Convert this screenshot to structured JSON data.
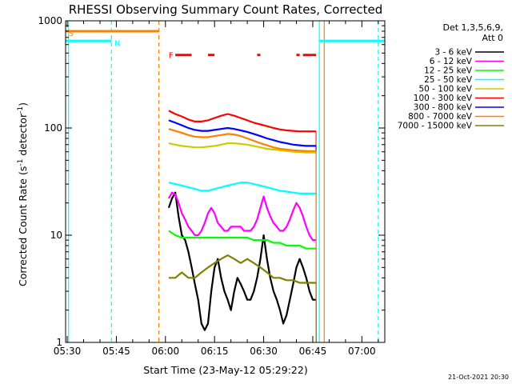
{
  "chart_data": {
    "type": "line",
    "title": "RHESSI Observing Summary Count Rates, Corrected",
    "xlabel": "Start Time (23-May-12 05:29:22)",
    "ylabel_main": "Corrected Count Rate (s",
    "ylabel_sup1": "-1",
    "ylabel_mid": " detector",
    "ylabel_sup2": "-1",
    "ylabel_end": ")",
    "y_scale": "log",
    "ylim": [
      1,
      1000
    ],
    "xlim_minutes": [
      -0.5,
      97
    ],
    "x_tick_labels": [
      {
        "min": 0,
        "label": "05:30"
      },
      {
        "min": 15,
        "label": "05:45"
      },
      {
        "min": 30,
        "label": "06:00"
      },
      {
        "min": 45,
        "label": "06:15"
      },
      {
        "min": 60,
        "label": "06:30"
      },
      {
        "min": 75,
        "label": "06:45"
      },
      {
        "min": 90,
        "label": "07:00"
      }
    ],
    "y_tick_labels": [
      {
        "value": 1,
        "label": "1"
      },
      {
        "value": 10,
        "label": "10"
      },
      {
        "value": 100,
        "label": "100"
      },
      {
        "value": 1000,
        "label": "1000"
      }
    ],
    "legend_header": [
      "Det 1,3,5,6,9,",
      "Att 0"
    ],
    "legend_placement": "right",
    "footer_date": "21-Oct-2021 20:30",
    "series": [
      {
        "name": "3 - 6 keV",
        "color": "#000000",
        "x": [
          31,
          32,
          33,
          34,
          35,
          36,
          37,
          38,
          39,
          40,
          41,
          42,
          43,
          44,
          45,
          46,
          47,
          48,
          49,
          50,
          51,
          52,
          53,
          54,
          55,
          56,
          57,
          58,
          59,
          60,
          61,
          62,
          63,
          64,
          65,
          66,
          67,
          68,
          69,
          70,
          71,
          72,
          73,
          74,
          75,
          76
        ],
        "y": [
          18,
          22,
          25,
          15,
          10,
          9,
          7,
          5,
          3.5,
          2.5,
          1.5,
          1.3,
          1.5,
          3,
          5,
          6,
          4,
          3,
          2.5,
          2,
          3,
          4,
          3.5,
          3,
          2.5,
          2.5,
          3,
          4,
          6,
          10,
          6,
          4,
          3,
          2.5,
          2,
          1.5,
          1.8,
          2.5,
          3.5,
          5,
          6,
          5,
          4,
          3,
          2.5,
          2.5
        ]
      },
      {
        "name": "6 - 12 keV",
        "color": "#ff00ff",
        "x": [
          31,
          32,
          33,
          34,
          35,
          36,
          37,
          38,
          39,
          40,
          41,
          42,
          43,
          44,
          45,
          46,
          47,
          48,
          49,
          50,
          51,
          52,
          53,
          54,
          55,
          56,
          57,
          58,
          59,
          60,
          61,
          62,
          63,
          64,
          65,
          66,
          67,
          68,
          69,
          70,
          71,
          72,
          73,
          74,
          75,
          76
        ],
        "y": [
          22,
          25,
          24,
          20,
          16,
          14,
          12,
          11,
          10,
          10,
          11,
          13,
          16,
          18,
          16,
          13,
          12,
          11,
          11,
          12,
          12,
          12,
          12,
          11,
          11,
          11,
          12,
          14,
          18,
          23,
          18,
          15,
          13,
          12,
          11,
          11,
          12,
          14,
          17,
          20,
          18,
          15,
          12,
          10,
          9,
          9
        ]
      },
      {
        "name": "12 - 25 keV",
        "color": "#00ff00",
        "x": [
          31,
          33,
          35,
          37,
          39,
          41,
          43,
          45,
          47,
          49,
          51,
          53,
          55,
          57,
          59,
          61,
          63,
          65,
          67,
          69,
          71,
          73,
          75,
          76
        ],
        "y": [
          11,
          10,
          9.5,
          9.5,
          9.5,
          9.5,
          9.5,
          9.5,
          9.5,
          9.5,
          9.5,
          9.5,
          9.5,
          9,
          9,
          9,
          8.5,
          8.5,
          8,
          8,
          8,
          7.5,
          7.5,
          7.5
        ]
      },
      {
        "name": "25 - 50 keV",
        "color": "#00ffff",
        "x": [
          31,
          33,
          35,
          37,
          39,
          41,
          43,
          45,
          47,
          49,
          51,
          53,
          55,
          57,
          59,
          61,
          63,
          65,
          67,
          69,
          71,
          73,
          75,
          76
        ],
        "y": [
          31,
          30,
          29,
          28,
          27,
          26,
          26,
          27,
          28,
          29,
          30,
          31,
          31,
          30,
          29,
          28,
          27,
          26,
          25.5,
          25,
          24.5,
          24.5,
          24.5,
          24.5
        ]
      },
      {
        "name": "50 - 100 keV",
        "color": "#cccc00",
        "x": [
          31,
          33,
          35,
          37,
          39,
          41,
          43,
          45,
          47,
          49,
          51,
          53,
          55,
          57,
          59,
          61,
          63,
          65,
          67,
          69,
          71,
          73,
          75,
          76
        ],
        "y": [
          72,
          70,
          68,
          67,
          66,
          66,
          67,
          68,
          70,
          72,
          72,
          71,
          70,
          68,
          66,
          64,
          63,
          62,
          61,
          60,
          59.5,
          59,
          59,
          59
        ]
      },
      {
        "name": "100 - 300 keV",
        "color": "#ff0000",
        "x": [
          31,
          33,
          35,
          37,
          39,
          41,
          43,
          45,
          47,
          49,
          51,
          53,
          55,
          57,
          59,
          61,
          63,
          65,
          67,
          69,
          71,
          73,
          75,
          76
        ],
        "y": [
          145,
          135,
          128,
          120,
          115,
          115,
          118,
          124,
          130,
          135,
          130,
          124,
          118,
          112,
          108,
          104,
          100,
          97,
          95,
          94,
          93,
          93,
          93,
          93
        ]
      },
      {
        "name": "300 - 800 keV",
        "color": "#0000ff",
        "x": [
          31,
          33,
          35,
          37,
          39,
          41,
          43,
          45,
          47,
          49,
          51,
          53,
          55,
          57,
          59,
          61,
          63,
          65,
          67,
          69,
          71,
          73,
          75,
          76
        ],
        "y": [
          118,
          112,
          106,
          100,
          96,
          94,
          94,
          96,
          98,
          100,
          98,
          95,
          92,
          88,
          84,
          80,
          77,
          74,
          72,
          70,
          69,
          68,
          68,
          68
        ]
      },
      {
        "name": "800 - 7000 keV",
        "color": "#ff8000",
        "x": [
          31,
          33,
          35,
          37,
          39,
          41,
          43,
          45,
          47,
          49,
          51,
          53,
          55,
          57,
          59,
          61,
          63,
          65,
          67,
          69,
          71,
          73,
          75,
          76
        ],
        "y": [
          98,
          94,
          90,
          86,
          83,
          82,
          82,
          84,
          86,
          88,
          87,
          84,
          80,
          76,
          72,
          69,
          66,
          64,
          63,
          62,
          61.5,
          61,
          61,
          61
        ]
      },
      {
        "name": "7000 - 15000 keV",
        "color": "#808000",
        "x": [
          31,
          33,
          35,
          37,
          39,
          41,
          43,
          45,
          47,
          49,
          51,
          53,
          55,
          57,
          59,
          61,
          63,
          65,
          67,
          69,
          71,
          73,
          75,
          76
        ],
        "y": [
          4,
          4,
          4.5,
          4,
          4,
          4.5,
          5,
          5.5,
          6,
          6.5,
          6,
          5.5,
          6,
          5.5,
          5,
          4.5,
          4,
          4,
          3.8,
          3.8,
          3.6,
          3.6,
          3.6,
          3.6
        ]
      }
    ],
    "flag_rows": [
      {
        "name": "S",
        "color": "#ff8000",
        "level": 800,
        "x_start": -0.5,
        "x_end": 28
      },
      {
        "name": "N",
        "color": "#00ffff",
        "level": 650,
        "segments": [
          [
            -0.5,
            13.5
          ],
          [
            77,
            97
          ]
        ]
      }
    ],
    "flare_flags": {
      "name": "F",
      "color": "#ff0000",
      "level": 480,
      "segments": [
        [
          33,
          38
        ],
        [
          43,
          45
        ],
        [
          58,
          59
        ],
        [
          70,
          71
        ],
        [
          72,
          76
        ]
      ]
    },
    "vertical_markers": [
      {
        "min": 0.4,
        "color": "#00ffff",
        "style": "solid"
      },
      {
        "min": 13.5,
        "color": "#00ffff",
        "style": "dashed"
      },
      {
        "min": 28,
        "color": "#ff8000",
        "style": "dashed"
      },
      {
        "min": 77,
        "color": "#00ffff",
        "style": "solid"
      },
      {
        "min": 78.5,
        "color": "#ff8000",
        "style": "solid"
      },
      {
        "min": 95,
        "color": "#00ffff",
        "style": "dashed"
      }
    ]
  }
}
